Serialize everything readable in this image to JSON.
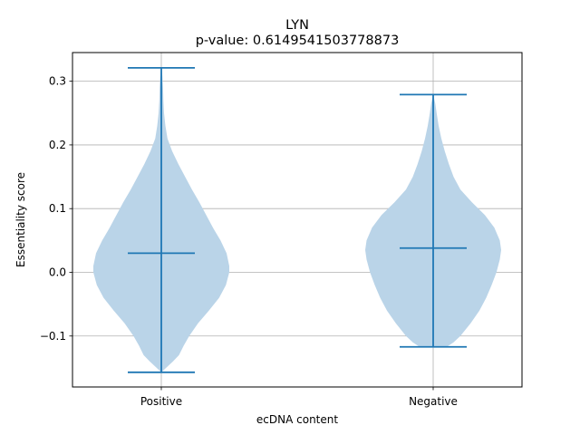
{
  "chart_data": {
    "type": "violin",
    "title": "LYN",
    "subtitle": "p-value: 0.6149541503778873",
    "xlabel": "ecDNA content",
    "ylabel": "Essentiality score",
    "categories": [
      "Positive",
      "Negative"
    ],
    "ylim": [
      -0.18,
      0.345
    ],
    "yticks": [
      -0.1,
      0.0,
      0.1,
      0.2,
      0.3
    ],
    "ytick_labels": [
      "−0.1",
      "0.0",
      "0.1",
      "0.2",
      "0.3"
    ],
    "grid": true,
    "fill_color": "#bad4e8",
    "line_color": "#1f77b4",
    "grid_color": "#b0b0b0",
    "violins": [
      {
        "category": "Positive",
        "min": -0.157,
        "median": 0.03,
        "max": 0.321,
        "density": [
          [
            -0.157,
            0.0
          ],
          [
            -0.15,
            0.07
          ],
          [
            -0.14,
            0.17
          ],
          [
            -0.13,
            0.26
          ],
          [
            -0.115,
            0.33
          ],
          [
            -0.1,
            0.41
          ],
          [
            -0.08,
            0.54
          ],
          [
            -0.06,
            0.7
          ],
          [
            -0.04,
            0.85
          ],
          [
            -0.02,
            0.95
          ],
          [
            0.0,
            1.0
          ],
          [
            0.01,
            1.0
          ],
          [
            0.03,
            0.96
          ],
          [
            0.05,
            0.87
          ],
          [
            0.07,
            0.76
          ],
          [
            0.09,
            0.66
          ],
          [
            0.11,
            0.56
          ],
          [
            0.13,
            0.45
          ],
          [
            0.15,
            0.35
          ],
          [
            0.17,
            0.25
          ],
          [
            0.19,
            0.16
          ],
          [
            0.21,
            0.09
          ],
          [
            0.23,
            0.06
          ],
          [
            0.25,
            0.04
          ],
          [
            0.27,
            0.03
          ],
          [
            0.29,
            0.025
          ],
          [
            0.305,
            0.018
          ],
          [
            0.315,
            0.01
          ],
          [
            0.321,
            0.0
          ]
        ]
      },
      {
        "category": "Negative",
        "min": -0.117,
        "median": 0.038,
        "max": 0.279,
        "density": [
          [
            -0.117,
            0.2
          ],
          [
            -0.11,
            0.3
          ],
          [
            -0.1,
            0.4
          ],
          [
            -0.08,
            0.55
          ],
          [
            -0.06,
            0.68
          ],
          [
            -0.04,
            0.78
          ],
          [
            -0.02,
            0.86
          ],
          [
            0.0,
            0.93
          ],
          [
            0.02,
            0.98
          ],
          [
            0.035,
            1.0
          ],
          [
            0.05,
            0.98
          ],
          [
            0.07,
            0.9
          ],
          [
            0.09,
            0.76
          ],
          [
            0.11,
            0.57
          ],
          [
            0.13,
            0.4
          ],
          [
            0.15,
            0.3
          ],
          [
            0.17,
            0.23
          ],
          [
            0.19,
            0.17
          ],
          [
            0.21,
            0.12
          ],
          [
            0.23,
            0.08
          ],
          [
            0.25,
            0.05
          ],
          [
            0.265,
            0.03
          ],
          [
            0.279,
            0.0
          ]
        ]
      }
    ]
  }
}
